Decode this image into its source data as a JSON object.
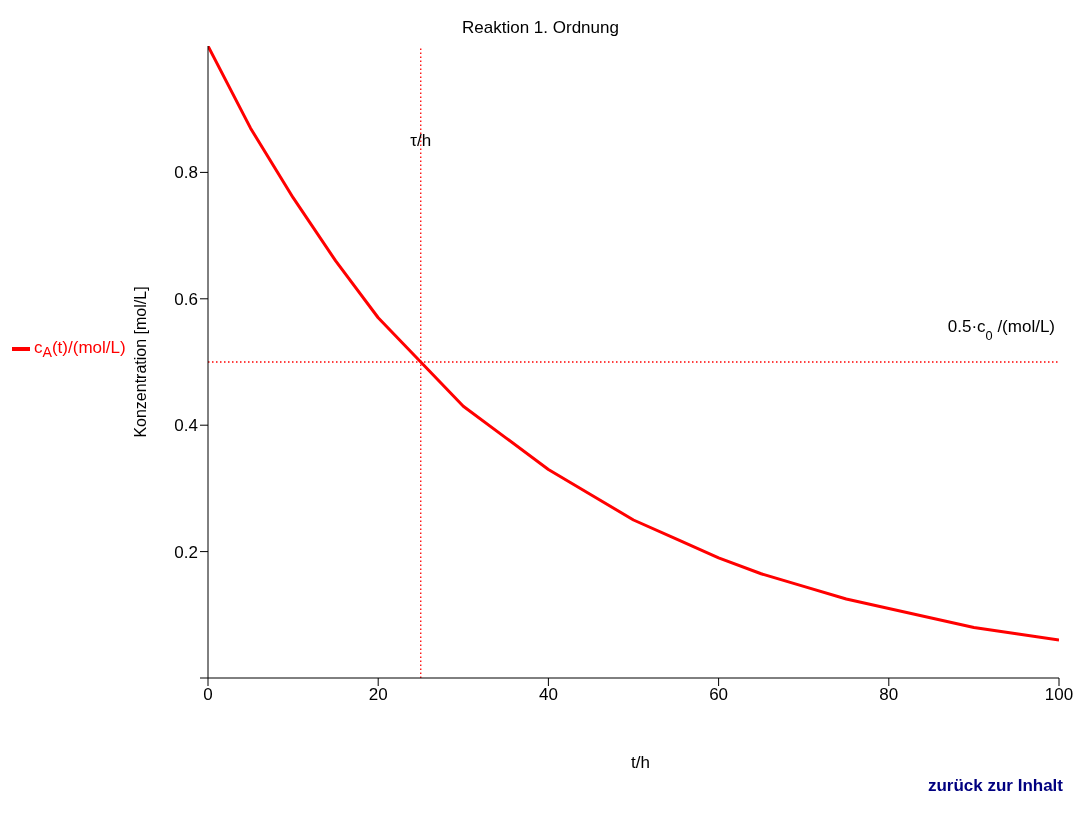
{
  "chart_data": {
    "type": "line",
    "title": "Reaktion 1. Ordnung",
    "xlabel": "t/h",
    "ylabel": "Konzentration [mol/L]",
    "x": [
      0,
      5,
      10,
      15,
      20,
      25,
      30,
      35,
      40,
      45,
      50,
      55,
      60,
      65,
      70,
      75,
      80,
      85,
      90,
      95,
      100
    ],
    "series": [
      {
        "name": "c$_{A}$(t)/(mol/L)",
        "color": "#ff0000",
        "values": [
          1.0,
          0.87,
          0.76,
          0.66,
          0.57,
          0.5,
          0.43,
          0.38,
          0.33,
          0.29,
          0.25,
          0.22,
          0.19,
          0.165,
          0.145,
          0.125,
          0.11,
          0.095,
          0.08,
          0.07,
          0.06
        ]
      }
    ],
    "xlim": [
      0,
      100
    ],
    "xticks": [
      0,
      20,
      40,
      60,
      80,
      100
    ],
    "ylim": [
      0,
      1
    ],
    "yticks": [
      {
        "value": 0,
        "label": null
      },
      0.2,
      0.4,
      0.6,
      0.8
    ],
    "ref_lines": [
      {
        "axis": "x",
        "value": 25,
        "label": "τ/h",
        "color": "#ff0000",
        "line_style": "dotted"
      },
      {
        "axis": "y",
        "value": 0.5,
        "label": "0.5·c$_{0}$/(mol/L)",
        "color": "#ff0000",
        "line_style": "dotted"
      }
    ],
    "annotations": [
      "zurück zur Inhalt"
    ],
    "legend": "left",
    "marker": "none",
    "line_style": "solid"
  }
}
